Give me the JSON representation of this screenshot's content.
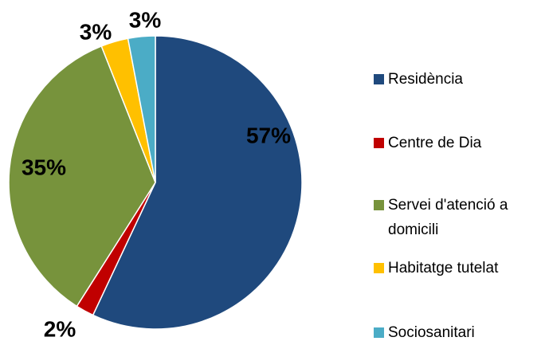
{
  "chart_data": {
    "type": "pie",
    "categories": [
      "Residència",
      "Centre de Dia",
      "Servei d'atenció a domicili",
      "Habitatge tutelat",
      "Sociosanitari"
    ],
    "values": [
      57,
      2,
      35,
      3,
      3
    ],
    "value_labels": [
      "57%",
      "2%",
      "35%",
      "3%",
      "3%"
    ],
    "colors": [
      "#1f497d",
      "#c00000",
      "#77933c",
      "#ffc000",
      "#4bacc6"
    ],
    "legend": "right"
  }
}
